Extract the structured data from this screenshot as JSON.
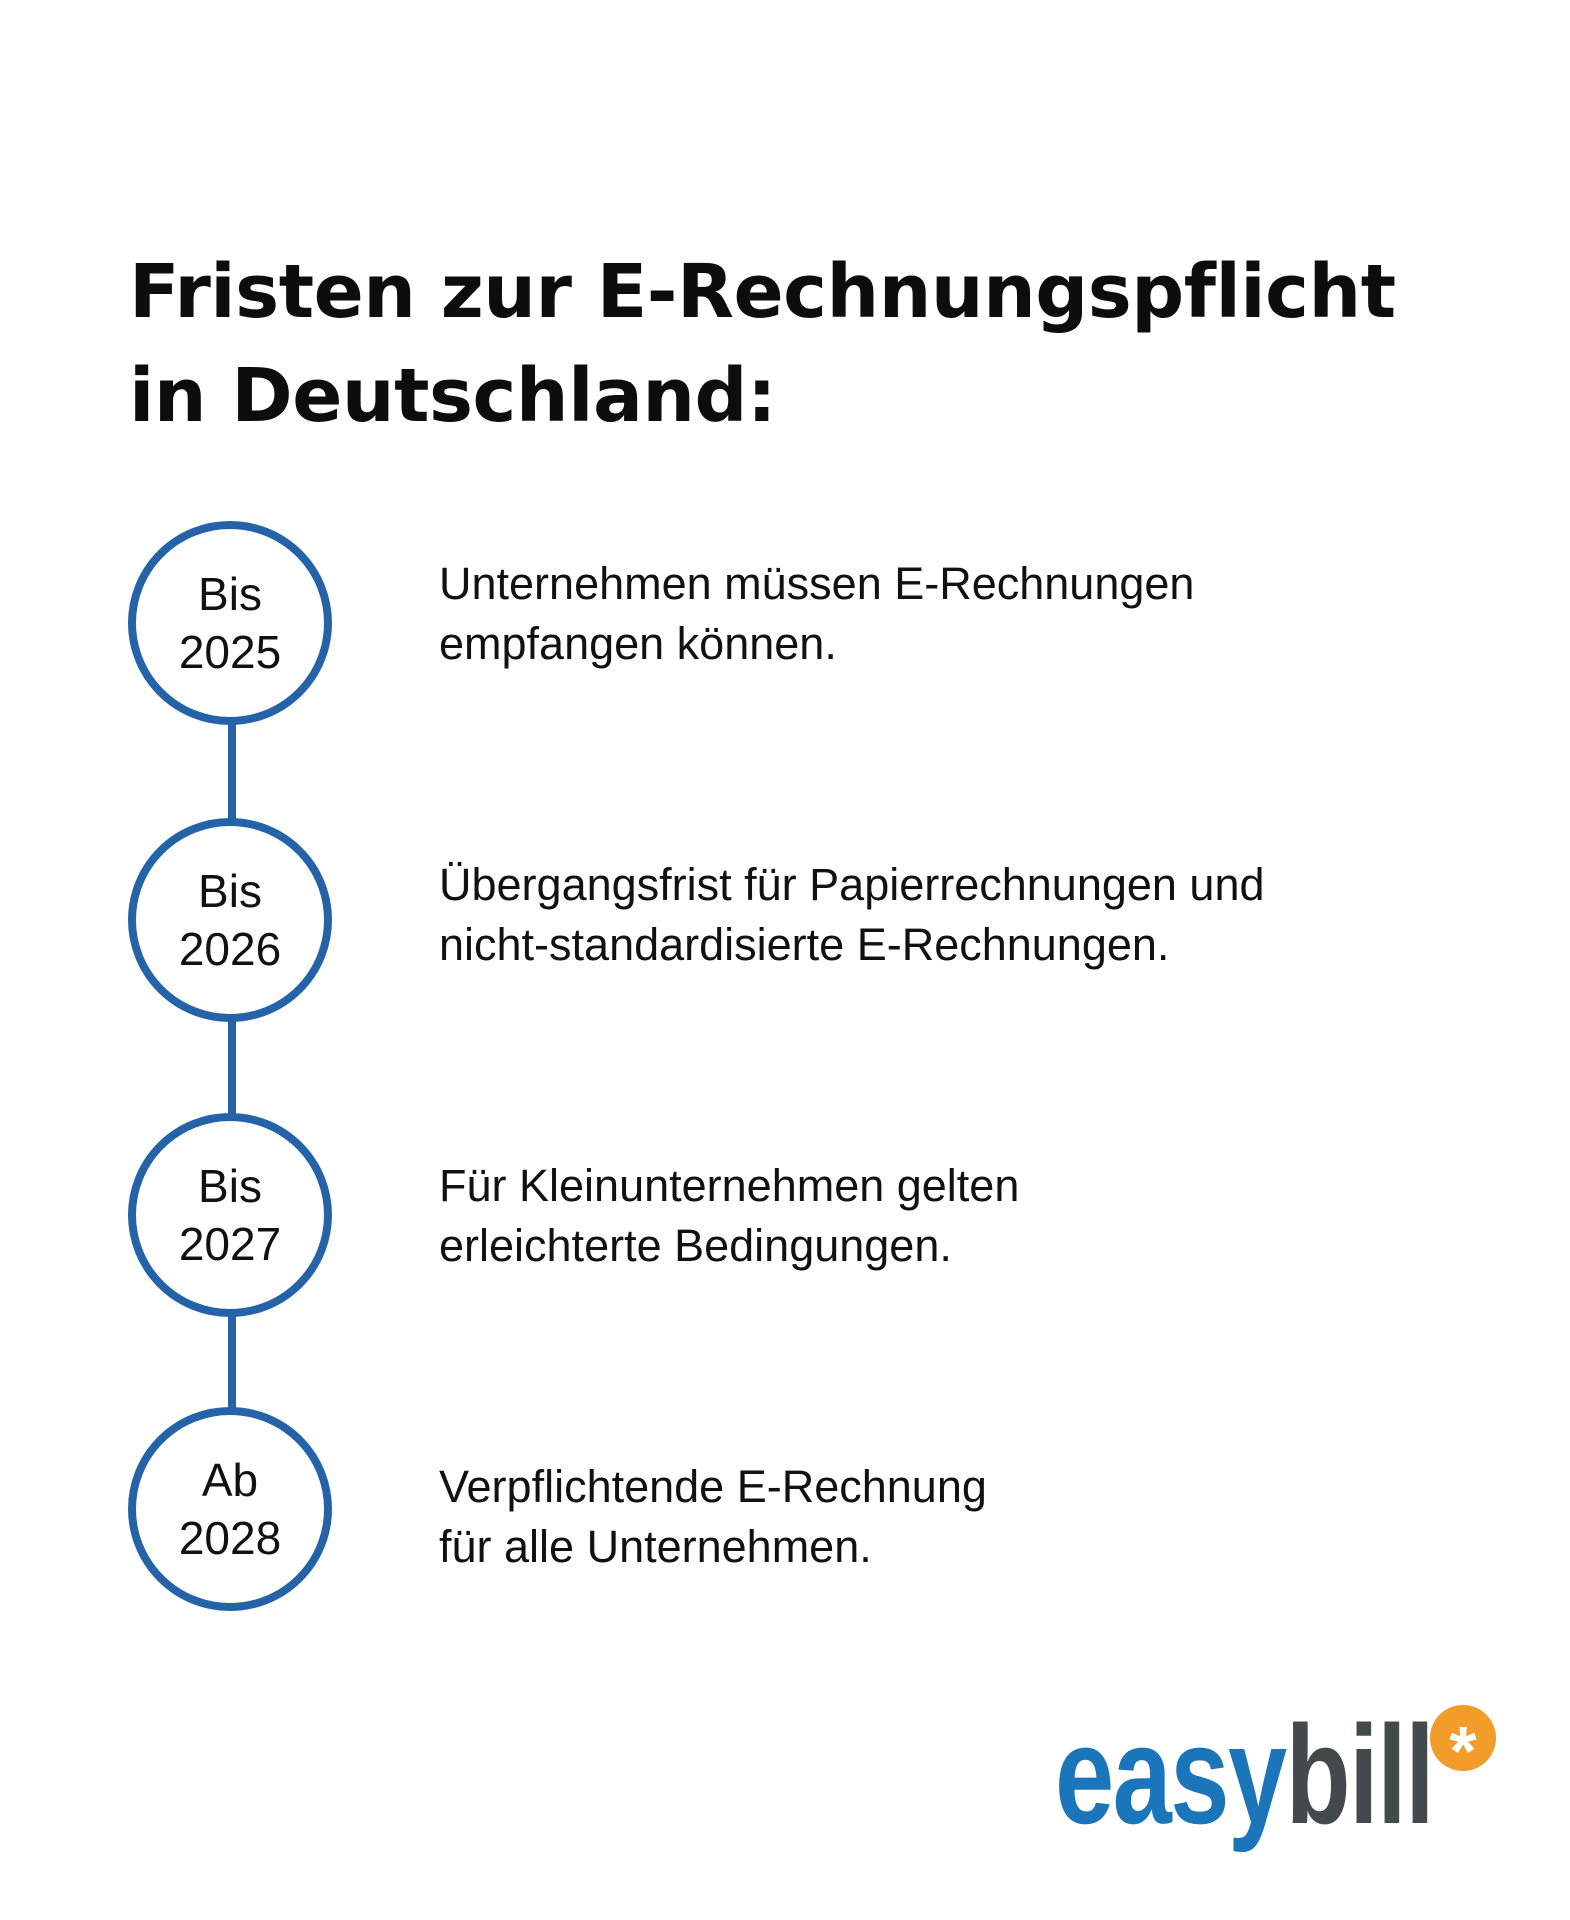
{
  "title": {
    "line1": "Fristen zur E-Rechnungspflicht",
    "line2": "in Deutschland:"
  },
  "timeline": [
    {
      "label_top": "Bis",
      "label_year": "2025",
      "text_line1": "Unternehmen müssen E-Rechnungen",
      "text_line2": "empfangen können."
    },
    {
      "label_top": "Bis",
      "label_year": "2026",
      "text_line1": "Übergangsfrist für Papierrechnungen und",
      "text_line2": "nicht-standardisierte E-Rechnungen."
    },
    {
      "label_top": "Bis",
      "label_year": "2027",
      "text_line1": "Für Kleinunternehmen gelten",
      "text_line2": "erleichterte Bedingungen."
    },
    {
      "label_top": "Ab",
      "label_year": "2028",
      "text_line1": "Verpflichtende E-Rechnung",
      "text_line2": "für alle Unternehmen."
    }
  ],
  "logo": {
    "part1": "easy",
    "part2": "bill",
    "symbol": "*",
    "icon": "asterisk-icon"
  },
  "colors": {
    "accent": "#2563a8",
    "logo_blue": "#1a75bb",
    "logo_gray": "#444a4c",
    "logo_orange": "#f29d2a"
  }
}
